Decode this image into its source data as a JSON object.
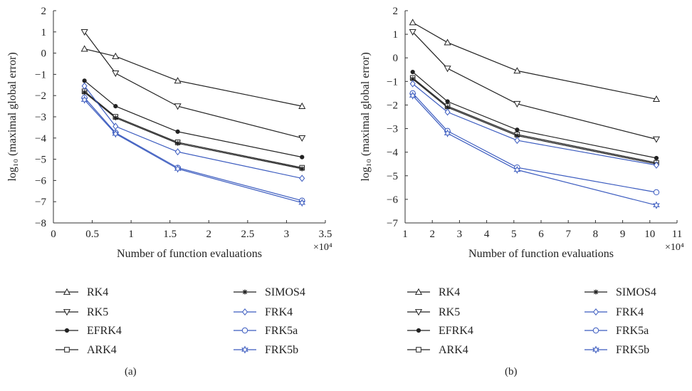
{
  "chart_data": [
    {
      "type": "line",
      "caption": "(a)",
      "xlabel": "Number of function evaluations",
      "ylabel": "log₁₀ (maximal global error)",
      "x_multiplier": "×10⁴",
      "xlim": [
        0,
        3.5
      ],
      "ylim": [
        -8,
        2
      ],
      "xticks": [
        "0",
        "0.5",
        "1",
        "1.5",
        "2",
        "2.5",
        "3",
        "3.5"
      ],
      "yticks": [
        "2",
        "1",
        "0",
        "−1",
        "−2",
        "−3",
        "−4",
        "−5",
        "−6",
        "−7",
        "−8"
      ],
      "x": [
        0.4,
        0.8,
        1.6,
        3.2
      ],
      "series": [
        {
          "name": "RK4",
          "values": [
            0.2,
            -0.15,
            -1.3,
            -2.5
          ]
        },
        {
          "name": "RK5",
          "values": [
            1.0,
            -0.95,
            -2.5,
            -4.0
          ]
        },
        {
          "name": "EFRK4",
          "values": [
            -1.3,
            -2.5,
            -3.7,
            -4.9
          ]
        },
        {
          "name": "ARK4",
          "values": [
            -1.8,
            -3.0,
            -4.2,
            -5.4
          ]
        },
        {
          "name": "SIMOS4",
          "values": [
            -1.85,
            -3.05,
            -4.25,
            -5.45
          ]
        },
        {
          "name": "FRK4",
          "values": [
            -1.55,
            -3.45,
            -4.65,
            -5.9
          ]
        },
        {
          "name": "FRK5a",
          "values": [
            -2.1,
            -3.75,
            -5.4,
            -6.95
          ]
        },
        {
          "name": "FRK5b",
          "values": [
            -2.2,
            -3.8,
            -5.45,
            -7.05
          ]
        }
      ]
    },
    {
      "type": "line",
      "caption": "(b)",
      "xlabel": "Number of function evaluations",
      "ylabel": "log₁₀ (maximal global error)",
      "x_multiplier": "×10⁴",
      "xlim": [
        1,
        11
      ],
      "ylim": [
        -7,
        2
      ],
      "xticks": [
        "1",
        "2",
        "3",
        "4",
        "5",
        "6",
        "7",
        "8",
        "9",
        "10",
        "11"
      ],
      "yticks": [
        "2",
        "1",
        "0",
        "−1",
        "−2",
        "−3",
        "−4",
        "−5",
        "−6",
        "−7"
      ],
      "x": [
        1.28,
        2.56,
        5.12,
        10.24
      ],
      "series": [
        {
          "name": "RK4",
          "values": [
            1.5,
            0.65,
            -0.55,
            -1.75
          ]
        },
        {
          "name": "RK5",
          "values": [
            1.1,
            -0.45,
            -1.95,
            -3.45
          ]
        },
        {
          "name": "EFRK4",
          "values": [
            -0.6,
            -1.85,
            -3.05,
            -4.25
          ]
        },
        {
          "name": "ARK4",
          "values": [
            -0.85,
            -2.05,
            -3.25,
            -4.45
          ]
        },
        {
          "name": "SIMOS4",
          "values": [
            -0.9,
            -2.1,
            -3.3,
            -4.5
          ]
        },
        {
          "name": "FRK4",
          "values": [
            -1.1,
            -2.3,
            -3.5,
            -4.55
          ]
        },
        {
          "name": "FRK5a",
          "values": [
            -1.5,
            -3.1,
            -4.65,
            -5.7
          ]
        },
        {
          "name": "FRK5b",
          "values": [
            -1.6,
            -3.2,
            -4.75,
            -6.25
          ]
        }
      ]
    }
  ],
  "legend": [
    {
      "name": "RK4",
      "marker": "triangle-up",
      "color": "#222222"
    },
    {
      "name": "RK5",
      "marker": "triangle-down",
      "color": "#222222"
    },
    {
      "name": "EFRK4",
      "marker": "dot",
      "color": "#222222"
    },
    {
      "name": "ARK4",
      "marker": "square",
      "color": "#222222"
    },
    {
      "name": "SIMOS4",
      "marker": "asterisk",
      "color": "#222222"
    },
    {
      "name": "FRK4",
      "marker": "diamond",
      "color": "#3b5bbf"
    },
    {
      "name": "FRK5a",
      "marker": "circle",
      "color": "#3b5bbf"
    },
    {
      "name": "FRK5b",
      "marker": "star",
      "color": "#3b5bbf"
    }
  ],
  "colors": {
    "black_series": "#222222",
    "blue_series": "#3b5bbf",
    "axis": "#333333"
  }
}
